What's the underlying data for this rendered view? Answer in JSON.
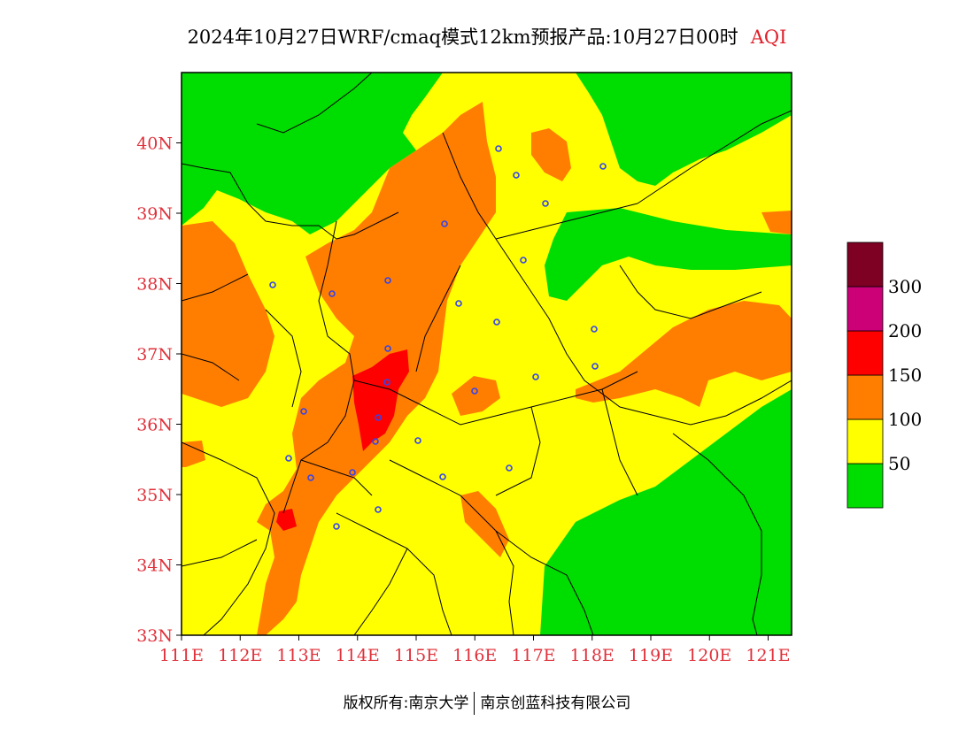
{
  "title": {
    "text": "2024年10月27日WRF/cmaq模式12km预报产品:10月27日00时",
    "variable": "AQI",
    "accent_color": "#e0202a"
  },
  "map": {
    "lon_range": [
      111,
      121.4
    ],
    "lat_range": [
      33,
      41
    ],
    "lat_ticks": [
      {
        "value": 33,
        "label": "33N"
      },
      {
        "value": 34,
        "label": "34N"
      },
      {
        "value": 35,
        "label": "35N"
      },
      {
        "value": 36,
        "label": "36N"
      },
      {
        "value": 37,
        "label": "37N"
      },
      {
        "value": 38,
        "label": "38N"
      },
      {
        "value": 39,
        "label": "39N"
      },
      {
        "value": 40,
        "label": "40N"
      }
    ],
    "lon_ticks": [
      {
        "value": 111,
        "label": "111E"
      },
      {
        "value": 112,
        "label": "112E"
      },
      {
        "value": 113,
        "label": "113E"
      },
      {
        "value": 114,
        "label": "114E"
      },
      {
        "value": 115,
        "label": "115E"
      },
      {
        "value": 116,
        "label": "116E"
      },
      {
        "value": 117,
        "label": "117E"
      },
      {
        "value": 118,
        "label": "118E"
      },
      {
        "value": 119,
        "label": "119E"
      },
      {
        "value": 120,
        "label": "120E"
      },
      {
        "value": 121,
        "label": "121E"
      }
    ]
  },
  "legend": {
    "bins": [
      {
        "color": "#00dd00",
        "label": ""
      },
      {
        "color": "#ffff00",
        "label": "50"
      },
      {
        "color": "#ff7e00",
        "label": "100"
      },
      {
        "color": "#ff0000",
        "label": "150"
      },
      {
        "color": "#cc0077",
        "label": "200"
      },
      {
        "color": "#7e0023",
        "label": "300"
      }
    ],
    "boundary_labels": [
      "50",
      "100",
      "150",
      "200",
      "300"
    ]
  },
  "copyright": {
    "left": "版权所有:南京大学",
    "right": "南京创蓝科技有限公司"
  }
}
